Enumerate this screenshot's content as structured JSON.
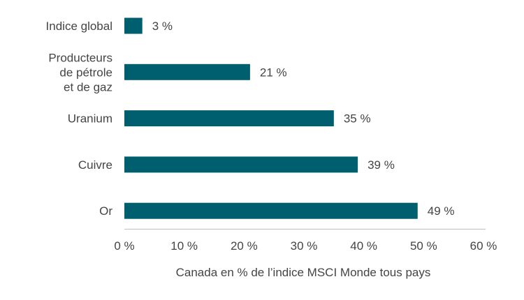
{
  "chart_data": {
    "type": "bar",
    "orientation": "horizontal",
    "categories": [
      [
        "Indice global"
      ],
      [
        "Producteurs",
        "de pétrole",
        "et de gaz"
      ],
      [
        "Uranium"
      ],
      [
        "Cuivre"
      ],
      [
        "Or"
      ]
    ],
    "values": [
      3,
      21,
      35,
      39,
      49
    ],
    "data_labels": [
      "3 %",
      "21 %",
      "35 %",
      "39 %",
      "49 %"
    ],
    "xlabel": "Canada en % de l’indice MSCI Monde tous pays",
    "ylabel": "",
    "xlim": [
      0,
      60
    ],
    "xticks": [
      0,
      10,
      20,
      30,
      40,
      50,
      60
    ],
    "xtick_labels": [
      "0 %",
      "10 %",
      "20 %",
      "30 %",
      "40 %",
      "50 %",
      "60 %"
    ],
    "grid": false,
    "colors": {
      "bar": "#005f6e",
      "axis": "#c8c8c8",
      "text": "#444444"
    }
  }
}
